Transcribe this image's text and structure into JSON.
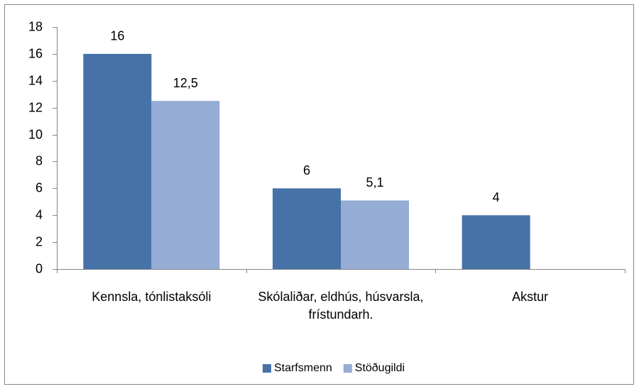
{
  "chart_data": {
    "type": "bar",
    "categories": [
      "Kennsla, tónlistaksóli",
      "Skólaliðar, eldhús, húsvarsla, frístundarh.",
      "Akstur"
    ],
    "series": [
      {
        "name": "Starfsmenn",
        "color": "#4672a8",
        "values": [
          16,
          6,
          4
        ]
      },
      {
        "name": "Stöðugildi",
        "color": "#95acd5",
        "values": [
          12.5,
          5.1,
          null
        ],
        "value_labels": [
          "12,5",
          "5,1",
          null
        ]
      }
    ],
    "ylim": [
      0,
      18
    ],
    "yticks": [
      0,
      2,
      4,
      6,
      8,
      10,
      12,
      14,
      16,
      18
    ],
    "grid": false,
    "legend": "bottom"
  }
}
